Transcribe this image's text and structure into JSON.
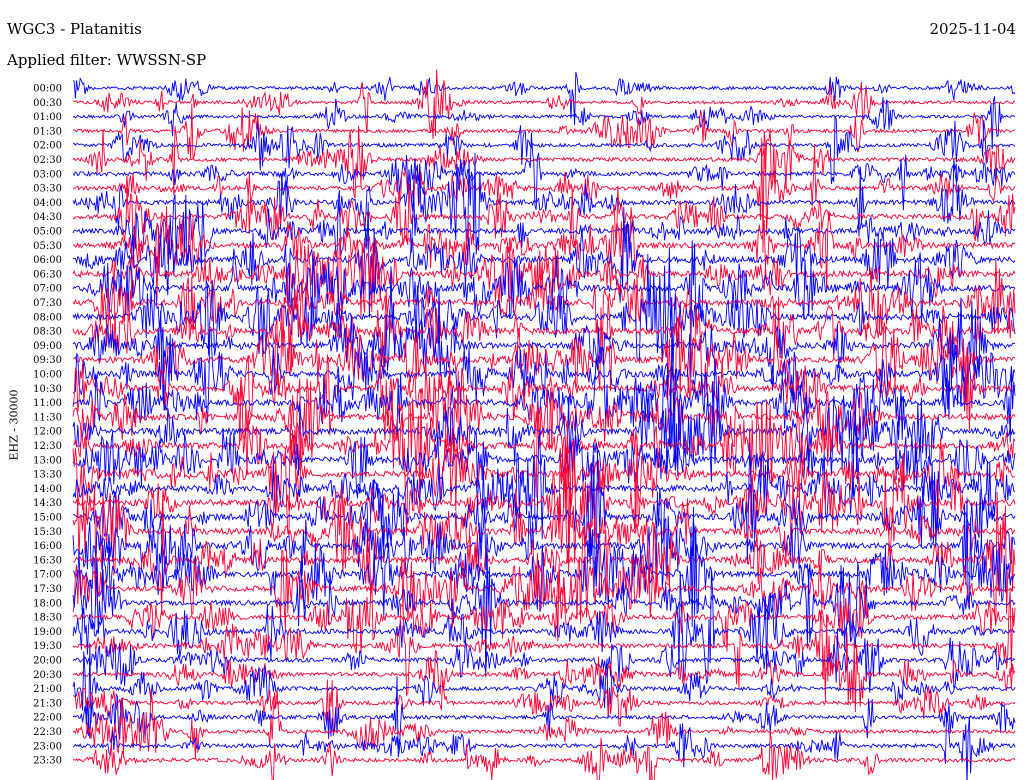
{
  "station_title": "WGC3 - Platanitis",
  "date": "2025-11-04",
  "filter_label": "Applied filter: WWSSN-SP",
  "channel_label": "EHZ - 30000",
  "colors": {
    "odd_trace": "#0000ff",
    "even_trace": "#ff0033",
    "background": "#ffffff",
    "text": "#000000"
  },
  "chart_data": {
    "type": "line",
    "row_labels": [
      "00:00",
      "00:30",
      "01:00",
      "01:30",
      "02:00",
      "02:30",
      "03:00",
      "03:30",
      "04:00",
      "04:30",
      "05:00",
      "05:30",
      "06:00",
      "06:30",
      "07:00",
      "07:30",
      "08:00",
      "08:30",
      "09:00",
      "09:30",
      "10:00",
      "10:30",
      "11:00",
      "11:30",
      "12:00",
      "12:30",
      "13:00",
      "13:30",
      "14:00",
      "14:30",
      "15:00",
      "15:30",
      "16:00",
      "16:30",
      "17:00",
      "17:30",
      "18:00",
      "18:30",
      "19:00",
      "19:30",
      "20:00",
      "20:30",
      "21:00",
      "21:30",
      "22:00",
      "22:30",
      "23:00",
      "23:30"
    ],
    "minutes_per_row": 30,
    "grid": false,
    "series_colors_alternate": [
      "#0000ff",
      "#ff0033"
    ],
    "activity_by_row": [
      0.35,
      0.35,
      0.35,
      0.4,
      0.45,
      0.5,
      0.55,
      0.6,
      0.65,
      0.7,
      0.8,
      0.85,
      0.95,
      1.0,
      1.0,
      1.0,
      1.0,
      1.0,
      1.0,
      1.0,
      1.0,
      1.0,
      1.0,
      1.0,
      1.0,
      1.0,
      1.0,
      1.0,
      1.0,
      1.0,
      1.0,
      1.0,
      1.0,
      0.95,
      0.9,
      0.85,
      0.8,
      0.75,
      0.7,
      0.65,
      0.6,
      0.55,
      0.5,
      0.45,
      0.45,
      0.45,
      0.5,
      0.55
    ]
  }
}
